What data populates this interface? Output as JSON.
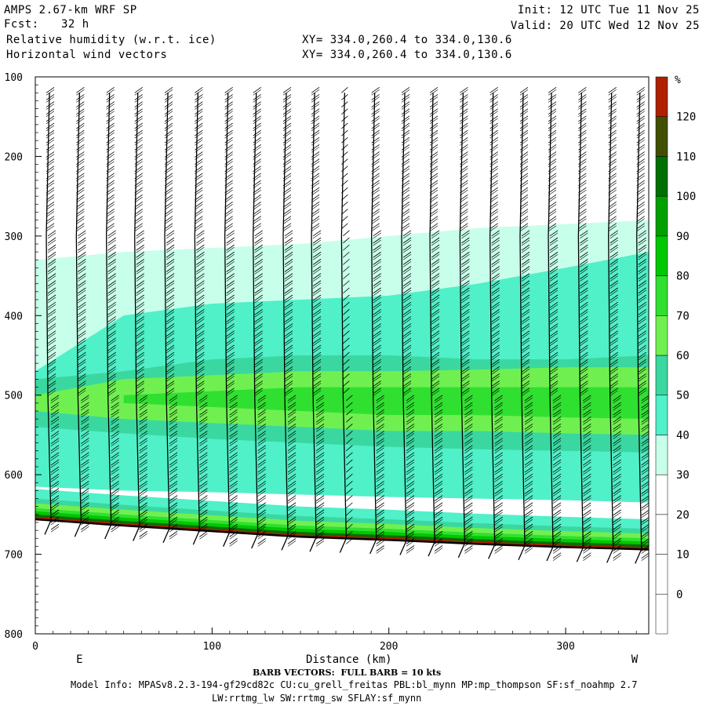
{
  "header": {
    "model": "AMPS 2.67-km WRF SP",
    "fcst_label": "Fcst:",
    "fcst_value": "32 h",
    "field1": "Relative humidity (w.r.t. ice)",
    "field2": "Horizontal wind vectors",
    "init": "Init: 12 UTC Tue 11 Nov 25",
    "valid": "Valid: 20 UTC Wed 12 Nov 25",
    "xy1": "XY= 334.0,260.4 to 334.0,130.6",
    "xy2": "XY= 334.0,260.4 to 334.0,130.6"
  },
  "footer": {
    "barb_note": "BARB VECTORS:  FULL BARB = 10 kts",
    "model_info": "Model Info: MPASv8.2.3-194-gf29cd82c CU:cu_grell_freitas PBL:bl_mynn MP:mp_thompson SF:sf_noahmp 2.7",
    "model_info2": "LW:rrtmg_lw SW:rrtmg_sw SFLAY:sf_mynn"
  },
  "colors": {
    "levels": [
      "#ffffff",
      "#ffffff",
      "#ffffff",
      "#ffffff",
      "#c8ffea",
      "#50f0c8",
      "#3ad8a0",
      "#70f050",
      "#30e030",
      "#00c800",
      "#00a000",
      "#007000",
      "#405000",
      "#b02000",
      "#ff0000"
    ],
    "terrain": "#000000"
  },
  "chart_data": {
    "type": "heatmap",
    "xlabel": "Distance (km)",
    "x_end_labels": [
      "E",
      "W"
    ],
    "xlim": [
      0,
      347
    ],
    "x_ticks": [
      0,
      100,
      200,
      300
    ],
    "ylim": [
      800,
      100
    ],
    "y_ticks": [
      100,
      200,
      300,
      400,
      500,
      600,
      700,
      800
    ],
    "colorbar": {
      "unit": "%",
      "ticks": [
        0,
        10,
        20,
        30,
        40,
        50,
        60,
        70,
        80,
        90,
        100,
        110,
        120
      ],
      "bounds": [
        -10,
        0,
        10,
        20,
        30,
        40,
        50,
        60,
        70,
        80,
        90,
        100,
        110,
        120,
        130
      ]
    },
    "terrain_surface_hPa": {
      "x": [
        0,
        50,
        100,
        150,
        200,
        250,
        300,
        347
      ],
      "p": [
        656,
        664,
        671,
        678,
        682,
        687,
        691,
        694
      ]
    },
    "rh_layers_hPa": [
      {
        "rh_min": 30,
        "top": [
          330,
          320,
          315,
          310,
          300,
          290,
          285,
          280
        ],
        "bottom": [
          590,
          595,
          595,
          598,
          600,
          603,
          605,
          605
        ]
      },
      {
        "rh_min": 40,
        "top": [
          470,
          400,
          385,
          380,
          375,
          360,
          340,
          320
        ],
        "bottom": [
          615,
          620,
          622,
          625,
          628,
          630,
          632,
          635
        ]
      },
      {
        "rh_min": 50,
        "top": [
          480,
          470,
          455,
          450,
          450,
          455,
          455,
          450
        ],
        "bottom": [
          540,
          548,
          555,
          560,
          565,
          568,
          570,
          572
        ]
      },
      {
        "rh_min": 60,
        "top": [
          500,
          480,
          475,
          470,
          470,
          468,
          465,
          465
        ],
        "bottom": [
          520,
          530,
          535,
          540,
          545,
          545,
          548,
          550
        ]
      },
      {
        "rh_min": 70,
        "top": [
          0,
          500,
          495,
          490,
          490,
          490,
          490,
          490
        ],
        "bottom": [
          0,
          510,
          515,
          520,
          525,
          525,
          528,
          530
        ]
      }
    ],
    "wind_barb_columns_km": [
      8,
      25,
      42,
      58,
      75,
      92,
      109,
      125,
      142,
      158,
      175,
      192,
      209,
      225,
      242,
      259,
      276,
      292,
      309,
      326,
      342
    ],
    "annotations": [
      "E",
      "W"
    ]
  }
}
